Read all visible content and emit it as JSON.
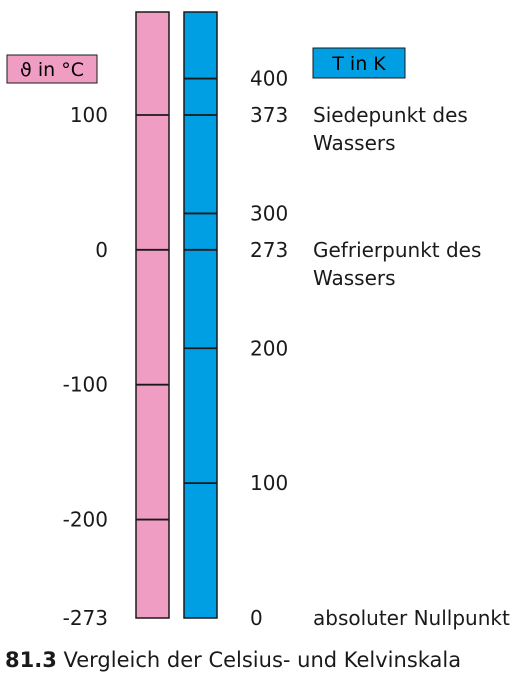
{
  "celsius_unit_label": "ϑ in °C",
  "kelvin_unit_label": "T in K",
  "colors": {
    "celsius_bar": "#f09dc3",
    "kelvin_bar": "#009fe3",
    "kelvin_label_box": "#009fe3",
    "celsius_label_box": "#f09dc3"
  },
  "celsius_ticks": [
    {
      "value": 100,
      "label": "100"
    },
    {
      "value": 0,
      "label": "0"
    },
    {
      "value": -100,
      "label": "-100"
    },
    {
      "value": -200,
      "label": "-200"
    },
    {
      "value": -273,
      "label": "-273"
    }
  ],
  "kelvin_ticks": [
    {
      "value": 400,
      "label": "400"
    },
    {
      "value": 373,
      "label": "373"
    },
    {
      "value": 300,
      "label": "300"
    },
    {
      "value": 273,
      "label": "273"
    },
    {
      "value": 200,
      "label": "200"
    },
    {
      "value": 100,
      "label": "100"
    },
    {
      "value": 0,
      "label": "0"
    }
  ],
  "annotations": [
    {
      "kelvin": 373,
      "lines": [
        "Siedepunkt des",
        "Wassers"
      ]
    },
    {
      "kelvin": 273,
      "lines": [
        "Gefrierpunkt des",
        "Wassers"
      ]
    },
    {
      "kelvin": 0,
      "lines": [
        "absoluter Nullpunkt"
      ]
    }
  ],
  "caption": {
    "number": "81.3",
    "text": "Vergleich der Celsius- und Kelvinskala"
  }
}
